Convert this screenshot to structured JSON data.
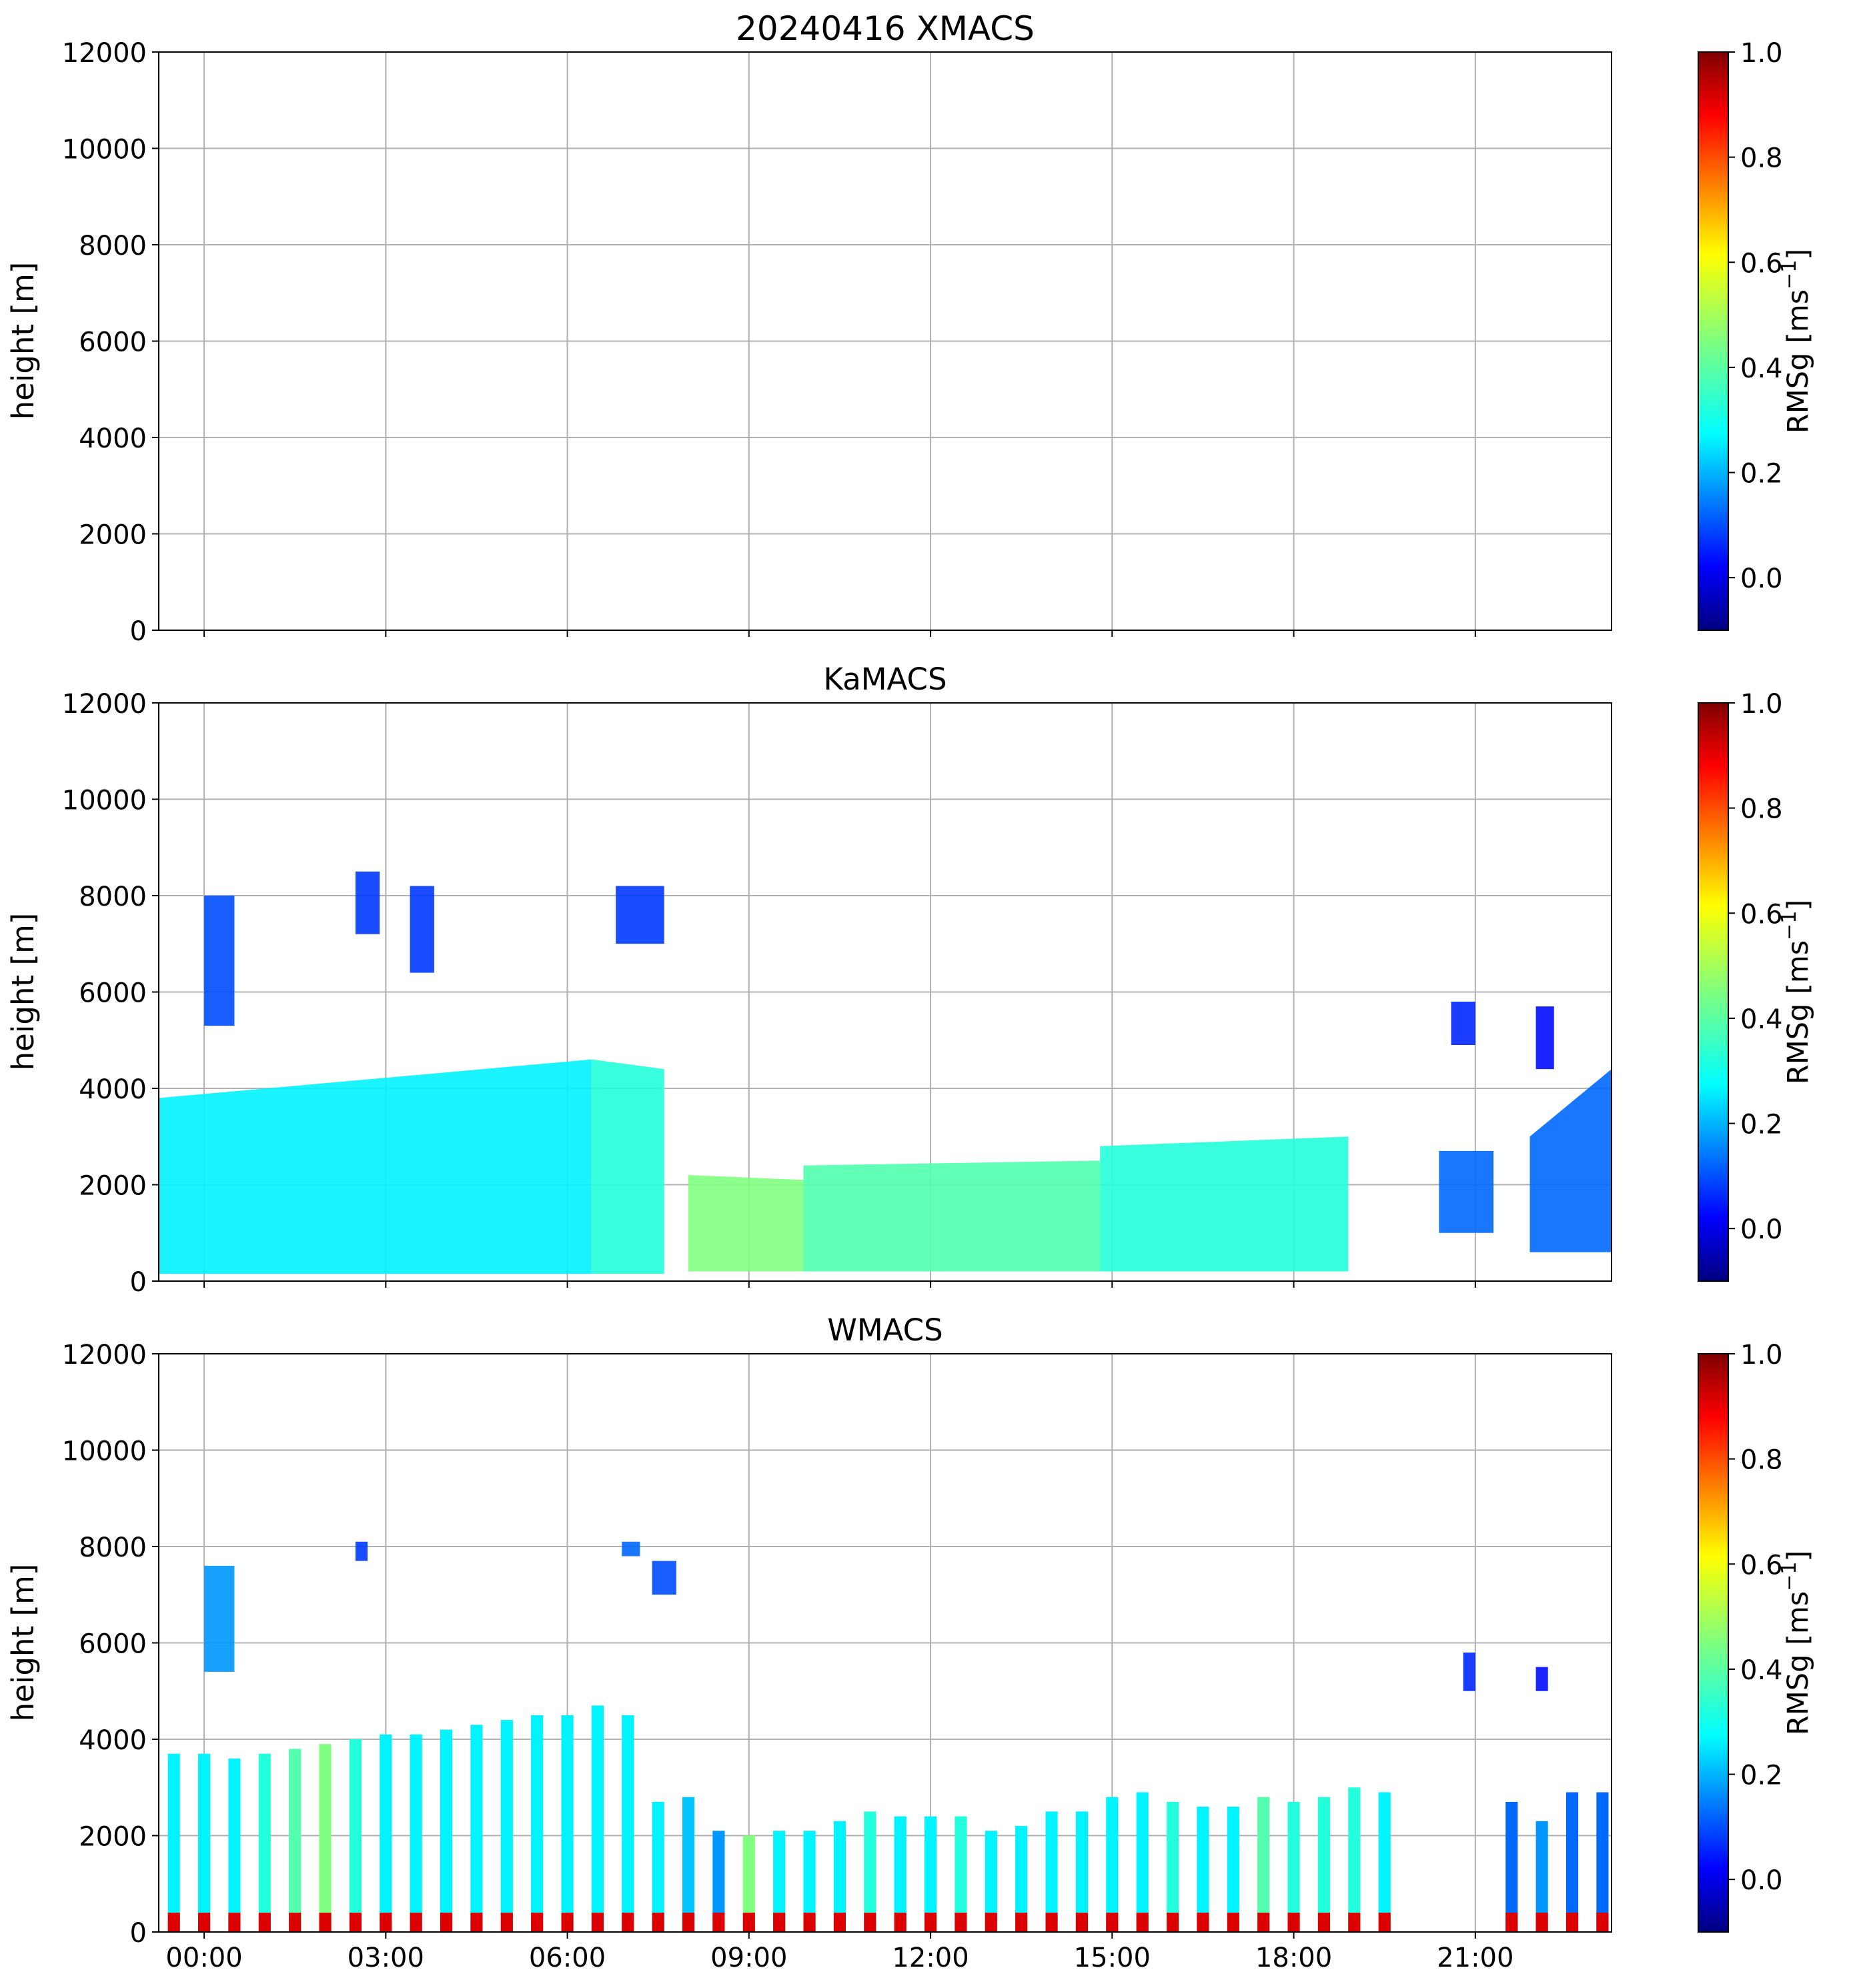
{
  "figure": {
    "colorbar_min": -0.1,
    "colorbar_max": 1.0,
    "colorbar_label": "RMSg [ms",
    "colorbar_label_exp": "−1",
    "colorbar_label_close": "]",
    "colorbar_ticks": [
      "0.0",
      "0.2",
      "0.4",
      "0.6",
      "0.8",
      "1.0"
    ],
    "colorbar_tick_values": [
      0.0,
      0.2,
      0.4,
      0.6,
      0.8,
      1.0
    ],
    "colormap": "jet",
    "grid_color": "#b0b0b0"
  },
  "chart_data": [
    {
      "type": "heatmap",
      "title": "20240416 XMACS",
      "xlabel": "",
      "ylabel": "height [m]",
      "xlim_hours": [
        -0.75,
        23.25
      ],
      "ylim": [
        0,
        12000
      ],
      "yticks": [
        "0",
        "2000",
        "4000",
        "6000",
        "8000",
        "10000",
        "12000"
      ],
      "ytick_values": [
        0,
        2000,
        4000,
        6000,
        8000,
        10000,
        12000
      ],
      "xticks": [],
      "xtick_hours": [
        0,
        3,
        6,
        9,
        12,
        15,
        18,
        21
      ],
      "echoes": []
    },
    {
      "type": "heatmap",
      "title": "KaMACS",
      "xlabel": "",
      "ylabel": "height [m]",
      "xlim_hours": [
        -0.75,
        23.25
      ],
      "ylim": [
        0,
        12000
      ],
      "yticks": [
        "0",
        "2000",
        "4000",
        "6000",
        "8000",
        "10000",
        "12000"
      ],
      "ytick_values": [
        0,
        2000,
        4000,
        6000,
        8000,
        10000,
        12000
      ],
      "xticks": [],
      "xtick_hours": [
        0,
        3,
        6,
        9,
        12,
        15,
        18,
        21
      ],
      "echoes": [
        {
          "name": "low-cloud-deck-night",
          "t0": -0.75,
          "t1": 6.4,
          "base": 150,
          "top_start": 3800,
          "top_end": 4600,
          "rms": 0.3
        },
        {
          "name": "low-cloud-deck-morning",
          "t0": 6.4,
          "t1": 7.6,
          "base": 150,
          "top_start": 4600,
          "top_end": 4400,
          "rms": 0.35
        },
        {
          "name": "shallow-convection-morning",
          "t0": 8.0,
          "t1": 9.9,
          "base": 200,
          "top_start": 2200,
          "top_end": 2100,
          "rms": 0.45
        },
        {
          "name": "shallow-convection-midday",
          "t0": 9.9,
          "t1": 14.8,
          "base": 200,
          "top_start": 2400,
          "top_end": 2500,
          "rms": 0.4
        },
        {
          "name": "shallow-convection-afternoon",
          "t0": 14.8,
          "t1": 18.9,
          "base": 200,
          "top_start": 2800,
          "top_end": 3000,
          "rms": 0.35
        },
        {
          "name": "evening-cells",
          "t0": 20.4,
          "t1": 21.3,
          "base": 1000,
          "top_start": 2700,
          "top_end": 2700,
          "rms": 0.15
        },
        {
          "name": "late-night-cloud",
          "t0": 21.9,
          "t1": 23.25,
          "base": 600,
          "top_start": 3000,
          "top_end": 4400,
          "rms": 0.15
        },
        {
          "name": "cirrus-early",
          "t0": 0.0,
          "t1": 0.5,
          "base": 5300,
          "top_start": 8000,
          "top_end": 8000,
          "rms": 0.12
        },
        {
          "name": "cirrus-2am",
          "t0": 2.5,
          "t1": 2.9,
          "base": 7200,
          "top_start": 8500,
          "top_end": 8500,
          "rms": 0.1
        },
        {
          "name": "cirrus-3am",
          "t0": 3.4,
          "t1": 3.8,
          "base": 6400,
          "top_start": 8200,
          "top_end": 8200,
          "rms": 0.1
        },
        {
          "name": "cirrus-7am",
          "t0": 6.8,
          "t1": 7.6,
          "base": 7000,
          "top_start": 8200,
          "top_end": 8200,
          "rms": 0.1
        },
        {
          "name": "midlevel-21h",
          "t0": 20.6,
          "t1": 21.0,
          "base": 4900,
          "top_start": 5800,
          "top_end": 5800,
          "rms": 0.08
        },
        {
          "name": "midlevel-22h",
          "t0": 22.0,
          "t1": 22.3,
          "base": 4400,
          "top_start": 5700,
          "top_end": 5700,
          "rms": 0.05
        }
      ]
    },
    {
      "type": "heatmap",
      "title": "WMACS",
      "xlabel": "",
      "ylabel": "height [m]",
      "xlim_hours": [
        -0.75,
        23.25
      ],
      "ylim": [
        0,
        12000
      ],
      "yticks": [
        "0",
        "2000",
        "4000",
        "6000",
        "8000",
        "10000",
        "12000"
      ],
      "ytick_values": [
        0,
        2000,
        4000,
        6000,
        8000,
        10000,
        12000
      ],
      "xticks": [
        "00:00",
        "03:00",
        "06:00",
        "09:00",
        "12:00",
        "15:00",
        "18:00",
        "21:00"
      ],
      "xtick_hours": [
        0,
        3,
        6,
        9,
        12,
        15,
        18,
        21
      ],
      "stripe_width_hours": 0.2,
      "stripes": [
        {
          "t": -0.6,
          "top": 3700,
          "rms": 0.3
        },
        {
          "t": -0.1,
          "top": 3700,
          "rms": 0.3
        },
        {
          "t": 0.4,
          "top": 3600,
          "rms": 0.3
        },
        {
          "t": 0.9,
          "top": 3700,
          "rms": 0.35
        },
        {
          "t": 1.4,
          "top": 3800,
          "rms": 0.4
        },
        {
          "t": 1.9,
          "top": 3900,
          "rms": 0.45
        },
        {
          "t": 2.4,
          "top": 4000,
          "rms": 0.35
        },
        {
          "t": 2.9,
          "top": 4100,
          "rms": 0.3
        },
        {
          "t": 3.4,
          "top": 4100,
          "rms": 0.3
        },
        {
          "t": 3.9,
          "top": 4200,
          "rms": 0.3
        },
        {
          "t": 4.4,
          "top": 4300,
          "rms": 0.3
        },
        {
          "t": 4.9,
          "top": 4400,
          "rms": 0.3
        },
        {
          "t": 5.4,
          "top": 4500,
          "rms": 0.3
        },
        {
          "t": 5.9,
          "top": 4500,
          "rms": 0.3
        },
        {
          "t": 6.4,
          "top": 4700,
          "rms": 0.3
        },
        {
          "t": 6.9,
          "top": 4500,
          "rms": 0.3
        },
        {
          "t": 7.4,
          "top": 2700,
          "rms": 0.3
        },
        {
          "t": 7.9,
          "top": 2800,
          "rms": 0.25
        },
        {
          "t": 8.4,
          "top": 2100,
          "rms": 0.2
        },
        {
          "t": 8.9,
          "top": 2000,
          "rms": 0.45
        },
        {
          "t": 9.4,
          "top": 2100,
          "rms": 0.3
        },
        {
          "t": 9.9,
          "top": 2100,
          "rms": 0.3
        },
        {
          "t": 10.4,
          "top": 2300,
          "rms": 0.3
        },
        {
          "t": 10.9,
          "top": 2500,
          "rms": 0.35
        },
        {
          "t": 11.4,
          "top": 2400,
          "rms": 0.3
        },
        {
          "t": 11.9,
          "top": 2400,
          "rms": 0.3
        },
        {
          "t": 12.4,
          "top": 2400,
          "rms": 0.35
        },
        {
          "t": 12.9,
          "top": 2100,
          "rms": 0.3
        },
        {
          "t": 13.4,
          "top": 2200,
          "rms": 0.3
        },
        {
          "t": 13.9,
          "top": 2500,
          "rms": 0.3
        },
        {
          "t": 14.4,
          "top": 2500,
          "rms": 0.3
        },
        {
          "t": 14.9,
          "top": 2800,
          "rms": 0.3
        },
        {
          "t": 15.4,
          "top": 2900,
          "rms": 0.3
        },
        {
          "t": 15.9,
          "top": 2700,
          "rms": 0.35
        },
        {
          "t": 16.4,
          "top": 2600,
          "rms": 0.3
        },
        {
          "t": 16.9,
          "top": 2600,
          "rms": 0.3
        },
        {
          "t": 17.4,
          "top": 2800,
          "rms": 0.4
        },
        {
          "t": 17.9,
          "top": 2700,
          "rms": 0.35
        },
        {
          "t": 18.4,
          "top": 2800,
          "rms": 0.35
        },
        {
          "t": 18.9,
          "top": 3000,
          "rms": 0.35
        },
        {
          "t": 19.4,
          "top": 2900,
          "rms": 0.3
        },
        {
          "t": 21.5,
          "top": 2700,
          "rms": 0.15
        },
        {
          "t": 22.0,
          "top": 2300,
          "rms": 0.2
        },
        {
          "t": 22.5,
          "top": 2900,
          "rms": 0.15
        },
        {
          "t": 23.0,
          "top": 2900,
          "rms": 0.15
        }
      ],
      "echoes": [
        {
          "name": "cirrus-early",
          "t0": 0.0,
          "t1": 0.5,
          "base": 5400,
          "top_start": 7600,
          "top_end": 7600,
          "rms": 0.2
        },
        {
          "name": "cirrus-2am",
          "t0": 2.5,
          "t1": 2.7,
          "base": 7700,
          "top_start": 8100,
          "top_end": 8100,
          "rms": 0.1
        },
        {
          "name": "cirrus-7am",
          "t0": 6.9,
          "t1": 7.2,
          "base": 7800,
          "top_start": 8100,
          "top_end": 8100,
          "rms": 0.15
        },
        {
          "name": "cirrus-7-30",
          "t0": 7.4,
          "t1": 7.8,
          "base": 7000,
          "top_start": 7700,
          "top_end": 7700,
          "rms": 0.12
        },
        {
          "name": "midlevel-21h",
          "t0": 20.8,
          "t1": 21.0,
          "base": 5000,
          "top_start": 5800,
          "top_end": 5800,
          "rms": 0.08
        },
        {
          "name": "midlevel-22h",
          "t0": 22.0,
          "t1": 22.2,
          "base": 5000,
          "top_start": 5500,
          "top_end": 5500,
          "rms": 0.05
        }
      ]
    }
  ]
}
